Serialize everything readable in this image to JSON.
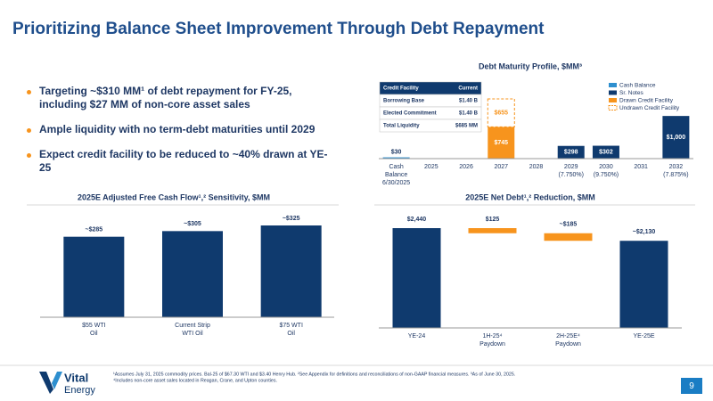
{
  "title": "Prioritizing Balance Sheet Improvement Through Debt Repayment",
  "bullets": [
    "Targeting ~$310 MM¹ of debt repayment for FY-25, including $27 MM of non-core asset sales",
    "Ample liquidity with no term-debt maturities until 2029",
    "Expect credit facility to be reduced to ~40% drawn at YE-25"
  ],
  "credit_facility": {
    "header": [
      "Credit Facility",
      "Current"
    ],
    "rows": [
      [
        "Borrowing Base",
        "$1.40 B"
      ],
      [
        "Elected Commitment",
        "$1.40 B"
      ],
      [
        "Total Liquidity",
        "$685 MM"
      ]
    ]
  },
  "chart_data": [
    {
      "type": "stacked_bar",
      "title": "Debt Maturity Profile, $MM³",
      "categories": [
        [
          "Cash",
          "Balance",
          "6/30/2025"
        ],
        [
          "2025"
        ],
        [
          "2026"
        ],
        [
          "2027"
        ],
        [
          "2028"
        ],
        [
          "2029",
          "(7.750%)"
        ],
        [
          "2030",
          "(9.750%)"
        ],
        [
          "2031"
        ],
        [
          "2032",
          "(7.875%)"
        ]
      ],
      "series": [
        {
          "name": "Cash Balance",
          "color": "#2e8fcf",
          "label_color": "#1f3864",
          "values": [
            30,
            null,
            null,
            null,
            null,
            null,
            null,
            null,
            null
          ],
          "value_labels": [
            "$30",
            null,
            null,
            null,
            null,
            null,
            null,
            null,
            null
          ]
        },
        {
          "name": "Sr. Notes",
          "color": "#0f3a6e",
          "label_color": "#ffffff",
          "values": [
            null,
            null,
            null,
            null,
            null,
            298,
            302,
            null,
            1000
          ],
          "value_labels": [
            null,
            null,
            null,
            null,
            null,
            "$298",
            "$302",
            null,
            "$1,000"
          ]
        },
        {
          "name": "Drawn Credit Facility",
          "color": "#f7941d",
          "label_color": "#ffffff",
          "values": [
            null,
            null,
            null,
            745,
            null,
            null,
            null,
            null,
            null
          ],
          "value_labels": [
            null,
            null,
            null,
            "$745",
            null,
            null,
            null,
            null,
            null
          ]
        },
        {
          "name": "Undrawn Credit Facility",
          "color": "#f7941d",
          "label_color": "#f7941d",
          "dashed": true,
          "values": [
            null,
            null,
            null,
            655,
            null,
            null,
            null,
            null,
            null
          ],
          "value_labels": [
            null,
            null,
            null,
            "$655",
            null,
            null,
            null,
            null,
            null
          ]
        }
      ]
    },
    {
      "type": "bar",
      "title": "2025E Adjusted Free Cash Flow¹,² Sensitivity, $MM",
      "color": "#0f3a6e",
      "categories": [
        [
          "$55 WTI",
          "Oil"
        ],
        [
          "Current Strip",
          "WTI Oil"
        ],
        [
          "$75 WTI",
          "Oil"
        ]
      ],
      "values": [
        285,
        305,
        325
      ],
      "value_labels": [
        "~$285",
        "~$305",
        "~$325"
      ]
    },
    {
      "type": "waterfall",
      "title": "2025E Net Debt¹,² Reduction, $MM",
      "categories": [
        [
          "YE-24"
        ],
        [
          "1H-25⁴",
          "Paydown"
        ],
        [
          "2H-25E⁴",
          "Paydown"
        ],
        [
          "YE-25E"
        ]
      ],
      "measure": [
        "absolute",
        "decrease",
        "decrease",
        "absolute"
      ],
      "colors": [
        "#0f3a6e",
        "#f7941d",
        "#f7941d",
        "#0f3a6e"
      ],
      "values": [
        2440,
        125,
        185,
        2130
      ],
      "value_labels": [
        "$2,440",
        "$125",
        "~$185",
        "~$2,130"
      ]
    }
  ],
  "footnotes": [
    "¹Assumes July 31, 2025 commodity prices. Bal-25 of $67.30 WTI and $3.40 Henry Hub. ²See Appendix for definitions and reconciliations of non-GAAP financial measures. ³As of June 30, 2025.",
    "⁴Includes non-core asset sales located in Reagan, Crane, and Upton counties."
  ],
  "logo": [
    "Vital",
    "Energy"
  ],
  "page_number": "9"
}
